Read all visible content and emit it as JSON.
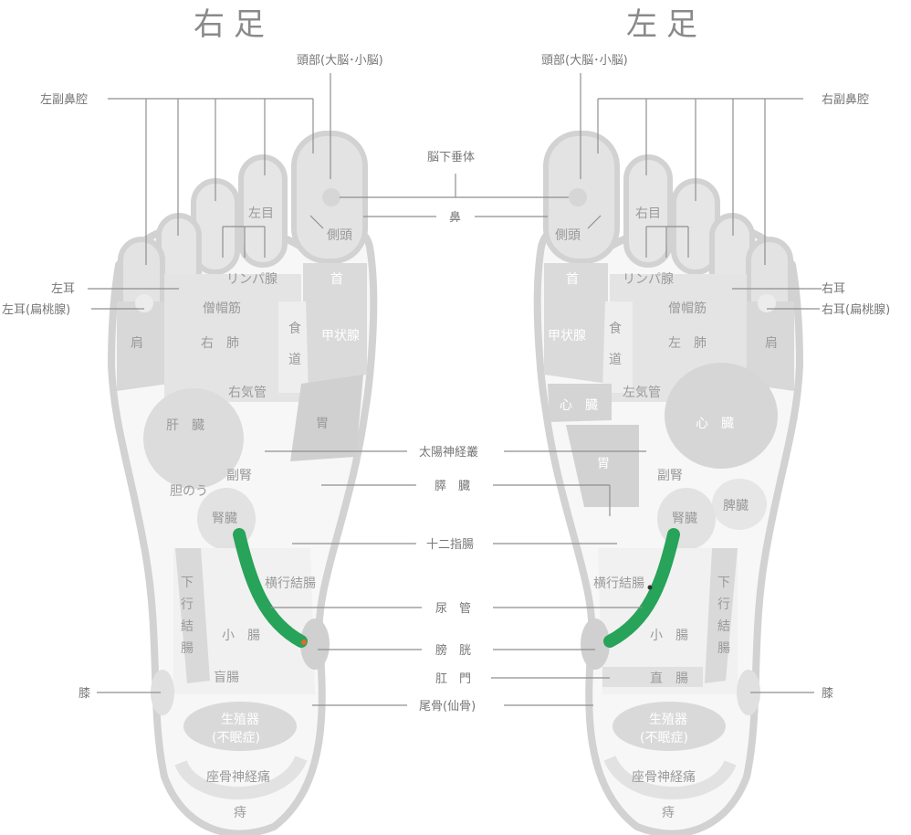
{
  "headings": {
    "right_foot": "右足",
    "left_foot": "左足"
  },
  "labels": {
    "head_r": "頭部(大脳･小脳)",
    "head_l": "頭部(大脳･小脳)",
    "sinus_left": "左副鼻腔",
    "sinus_right": "右副鼻腔",
    "pituitary": "脳下垂体",
    "nose": "鼻",
    "left_ear": "左耳",
    "left_ear_tonsil": "左耳(扁桃腺)",
    "right_ear": "右耳",
    "right_ear_tonsil": "右耳(扁桃腺)",
    "solar_plexus": "太陽神経叢",
    "pancreas": "膵　臓",
    "duodenum": "十二指腸",
    "ureter": "尿　管",
    "bladder": "膀　胱",
    "anus": "肛　門",
    "coccyx": "尾骨(仙骨)",
    "knee_r": "膝",
    "knee_l": "膝"
  },
  "right_foot": {
    "left_eye": "左目",
    "temple": "側頭",
    "lymph": "リンパ腺",
    "neck": "首",
    "trapezius": "僧帽筋",
    "esophagus_1": "食",
    "esophagus_2": "道",
    "thyroid": "甲状腺",
    "shoulder": "肩",
    "lung": "右　肺",
    "bronchus": "右気管",
    "liver": "肝　臓",
    "stomach": "胃",
    "adrenal": "副腎",
    "gallbladder": "胆のう",
    "kidney": "腎臓",
    "transverse_colon": "横行結腸",
    "descending_1": "下",
    "descending_2": "行",
    "descending_3": "結",
    "descending_4": "腸",
    "small_intestine": "小　腸",
    "cecum": "盲腸",
    "genital_1": "生殖器",
    "genital_2": "(不眠症)",
    "sciatic": "座骨神経痛",
    "hemorrhoid": "痔"
  },
  "left_foot": {
    "right_eye": "右目",
    "temple": "側頭",
    "lymph": "リンパ腺",
    "neck": "首",
    "trapezius": "僧帽筋",
    "esophagus_1": "食",
    "esophagus_2": "道",
    "thyroid": "甲状腺",
    "shoulder": "肩",
    "lung": "左　肺",
    "bronchus": "左気管",
    "heart_a": "心　臓",
    "heart_b": "心　臓",
    "stomach": "胃",
    "adrenal": "副腎",
    "spleen": "脾臓",
    "kidney": "腎臓",
    "transverse_colon": "横行結腸",
    "descending_1": "下",
    "descending_2": "行",
    "descending_3": "結",
    "descending_4": "腸",
    "small_intestine": "小　腸",
    "rectum": "直　腸",
    "genital_1": "生殖器",
    "genital_2": "(不眠症)",
    "sciatic": "座骨神経痛",
    "hemorrhoid": "痔"
  },
  "colors": {
    "outline": "#d4d4d4",
    "zone_light": "#ececec",
    "zone_mid": "#dcdcdc",
    "zone_dark": "#c8c8c8",
    "ureter": "#27a35a",
    "accent": "#e06a2c"
  }
}
